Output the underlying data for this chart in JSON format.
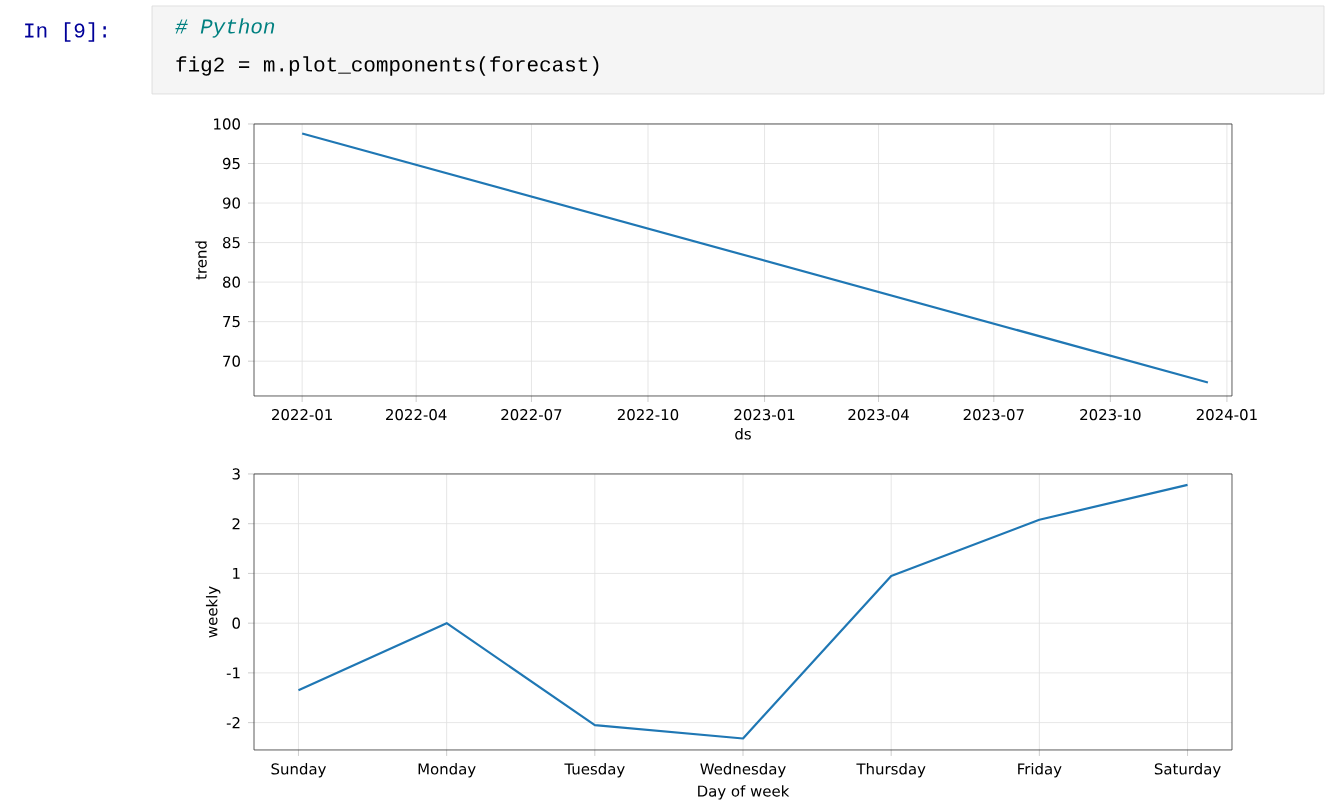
{
  "chart_data": [
    {
      "type": "line",
      "ylabel": "trend",
      "xlabel": "ds",
      "annotations": [
        "In [9]:",
        "# Python",
        "fig2 = m.plot_components(forecast)"
      ],
      "x": [
        "2022-01-01",
        "2023-12-17"
      ],
      "series": [
        {
          "color": "#1f77b4",
          "values": [
            98.8,
            67.3
          ]
        }
      ],
      "xlim": [
        "2021-11-24",
        "2024-01-05"
      ],
      "xticks": [
        "2022-01",
        "2022-04",
        "2022-07",
        "2022-10",
        "2023-01",
        "2023-04",
        "2023-07",
        "2023-10",
        "2024-01"
      ],
      "ylim": [
        65.6,
        100
      ],
      "yticks": [
        70,
        75,
        80,
        85,
        90,
        95,
        100
      ],
      "grid": true
    },
    {
      "type": "line",
      "ylabel": "weekly",
      "xlabel": "Day of week",
      "categories": [
        "Sunday",
        "Monday",
        "Tuesday",
        "Wednesday",
        "Thursday",
        "Friday",
        "Saturday"
      ],
      "series": [
        {
          "color": "#1f77b4",
          "values": [
            -1.35,
            0,
            -2.05,
            -2.32,
            0.95,
            2.08,
            2.78
          ]
        }
      ],
      "ylim": [
        -2.55,
        3
      ],
      "yticks": [
        -2,
        -1,
        0,
        1,
        2,
        3
      ],
      "grid": true
    }
  ]
}
